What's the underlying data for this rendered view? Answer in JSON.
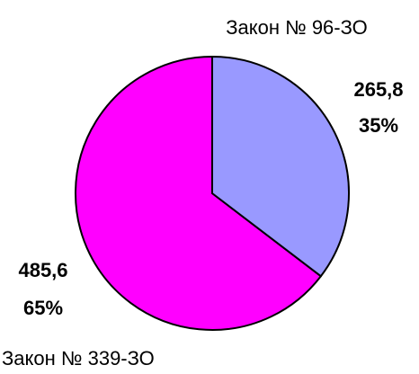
{
  "chart_data": {
    "type": "pie",
    "categories": [
      "Закон № 96-ЗО",
      "Закон № 339-ЗО"
    ],
    "values": [
      265.8,
      485.6
    ],
    "value_labels": [
      "265,8",
      "485,6"
    ],
    "percents": [
      35,
      65
    ],
    "percent_labels": [
      "35%",
      "65%"
    ],
    "colors": [
      "#9999ff",
      "#ff00ff"
    ]
  }
}
